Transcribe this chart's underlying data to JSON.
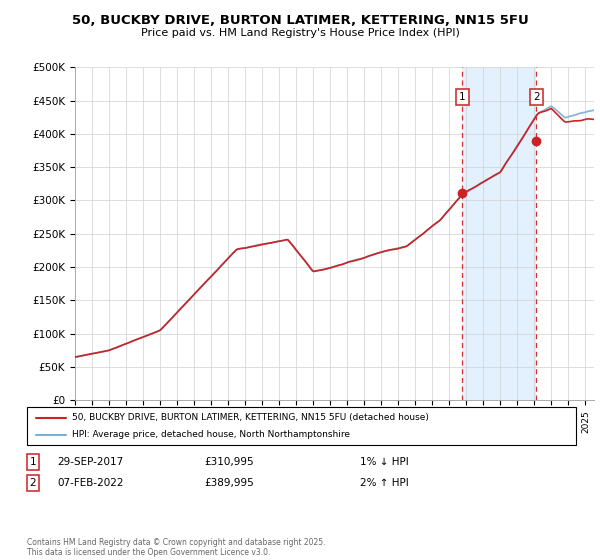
{
  "title_line1": "50, BUCKBY DRIVE, BURTON LATIMER, KETTERING, NN15 5FU",
  "title_line2": "Price paid vs. HM Land Registry's House Price Index (HPI)",
  "legend_line1": "50, BUCKBY DRIVE, BURTON LATIMER, KETTERING, NN15 5FU (detached house)",
  "legend_line2": "HPI: Average price, detached house, North Northamptonshire",
  "annotation1_date": "29-SEP-2017",
  "annotation1_price": "£310,995",
  "annotation1_note": "1% ↓ HPI",
  "annotation2_date": "07-FEB-2022",
  "annotation2_price": "£389,995",
  "annotation2_note": "2% ↑ HPI",
  "footer": "Contains HM Land Registry data © Crown copyright and database right 2025.\nThis data is licensed under the Open Government Licence v3.0.",
  "hpi_color": "#7bafd4",
  "price_color": "#cc2222",
  "annotation_color": "#cc3333",
  "shade_color": "#ddeeff",
  "plot_bg_color": "#ffffff",
  "ylim": [
    0,
    500000
  ],
  "yticks": [
    0,
    50000,
    100000,
    150000,
    200000,
    250000,
    300000,
    350000,
    400000,
    450000,
    500000
  ],
  "xlim_start": 1995.0,
  "xlim_end": 2025.5,
  "grid_color": "#d0d0d0",
  "sale1_x": 2017.747,
  "sale1_y": 310995,
  "sale2_x": 2022.1,
  "sale2_y": 389995
}
